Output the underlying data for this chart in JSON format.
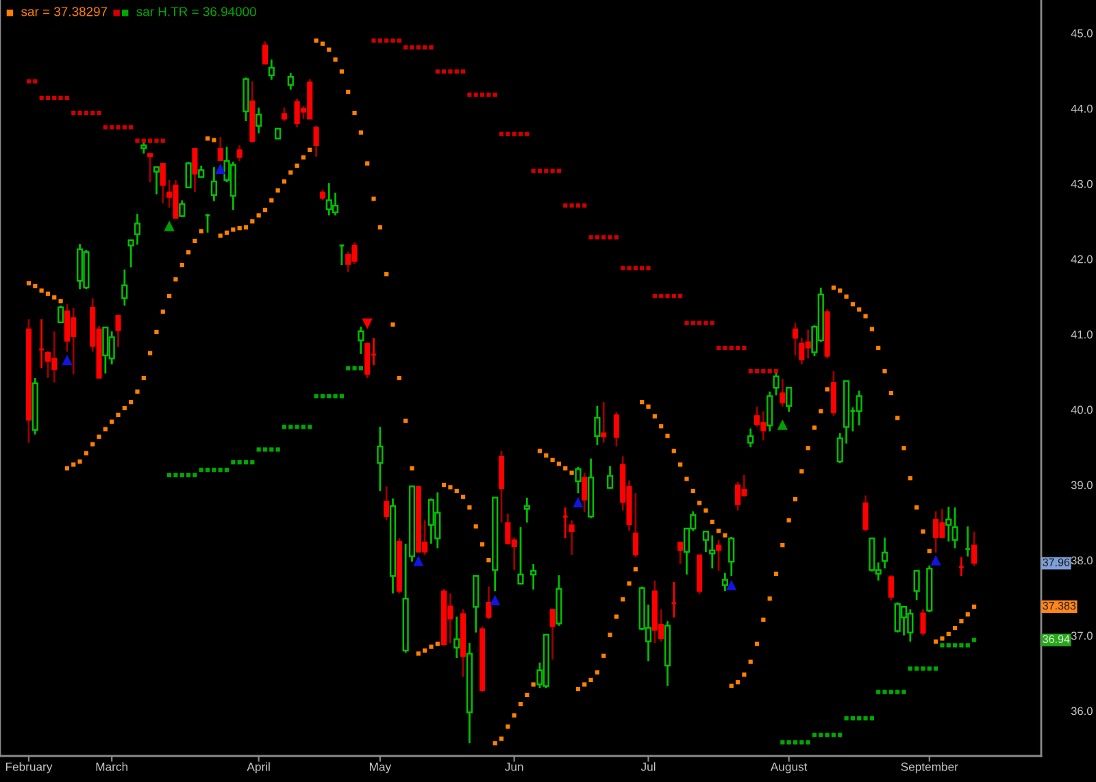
{
  "chart_data": {
    "type": "candlestick",
    "categories": [
      null,
      null,
      null,
      null,
      "February",
      null,
      null,
      null,
      null,
      null,
      null,
      null,
      null,
      null,
      null,
      null,
      null,
      "March",
      null,
      null,
      null,
      null,
      null,
      null,
      null,
      null,
      null,
      null,
      null,
      null,
      null,
      null,
      null,
      null,
      null,
      null,
      null,
      null,
      null,
      null,
      "April",
      null,
      null,
      null,
      null,
      null,
      null,
      null,
      null,
      null,
      null,
      null,
      null,
      null,
      null,
      null,
      null,
      null,
      null,
      "May",
      null,
      null,
      null,
      null,
      null,
      null,
      null,
      null,
      null,
      null,
      null,
      null,
      null,
      null,
      null,
      null,
      null,
      null,
      null,
      null,
      "Jun",
      null,
      null,
      null,
      null,
      null,
      null,
      null,
      null,
      null,
      null,
      null,
      null,
      null,
      null,
      null,
      null,
      null,
      null,
      null,
      null,
      "Jul",
      null,
      null,
      null,
      null,
      null,
      null,
      null,
      null,
      null,
      null,
      null,
      null,
      null,
      null,
      null,
      null,
      null,
      null,
      null,
      null,
      null,
      "August",
      null,
      null,
      null,
      null,
      null,
      null,
      null,
      null,
      null,
      null,
      null,
      null,
      null,
      null,
      null,
      null,
      null,
      null,
      null,
      null,
      null,
      "September",
      null,
      null,
      null,
      null,
      null,
      null,
      null,
      null,
      null,
      null,
      null,
      null,
      null,
      null,
      null,
      null,
      null
    ],
    "ohlc": [
      null,
      null,
      null,
      null,
      [
        41.07,
        41.2,
        39.56,
        39.86
      ],
      [
        39.73,
        40.42,
        39.67,
        40.35
      ],
      [
        40.8,
        41.2,
        40.55,
        40.8
      ],
      [
        40.76,
        40.78,
        40.42,
        40.64
      ],
      [
        40.68,
        41.04,
        40.36,
        40.53
      ],
      [
        41.16,
        41.38,
        41.15,
        41.36
      ],
      [
        41.31,
        41.4,
        40.77,
        40.91
      ],
      [
        41.22,
        41.35,
        40.47,
        40.97
      ],
      [
        41.71,
        42.2,
        41.6,
        42.13
      ],
      [
        41.62,
        42.12,
        41.6,
        42.09
      ],
      [
        41.36,
        41.48,
        40.77,
        40.84
      ],
      [
        41.07,
        41.11,
        40.41,
        40.42
      ],
      [
        40.72,
        41.1,
        40.48,
        41.09
      ],
      [
        40.68,
        41.04,
        40.6,
        40.96
      ],
      [
        41.25,
        41.25,
        40.83,
        41.05
      ],
      [
        41.48,
        41.86,
        41.38,
        41.65
      ],
      [
        42.18,
        42.25,
        41.89,
        42.25
      ],
      [
        42.33,
        42.6,
        42.19,
        42.47
      ],
      [
        43.47,
        43.58,
        43.4,
        43.51
      ],
      [
        43.4,
        43.4,
        43.02,
        43.36
      ],
      [
        43.16,
        43.22,
        42.86,
        43.22
      ],
      [
        43.27,
        43.27,
        42.74,
        42.98
      ],
      [
        42.89,
        43.05,
        42.68,
        42.82
      ],
      [
        42.98,
        43.05,
        42.54,
        42.54
      ],
      [
        42.57,
        42.78,
        42.56,
        42.73
      ],
      [
        42.95,
        43.29,
        42.94,
        43.27
      ],
      [
        43.47,
        43.47,
        42.89,
        43.13
      ],
      [
        43.09,
        43.24,
        43.09,
        43.18
      ],
      [
        42.58,
        42.6,
        42.35,
        42.58
      ],
      [
        42.85,
        43.22,
        42.77,
        43.03
      ],
      [
        43.47,
        43.62,
        43.3,
        43.31
      ],
      [
        43.05,
        43.49,
        43.02,
        43.3
      ],
      [
        42.84,
        43.29,
        42.65,
        43.25
      ],
      [
        43.45,
        43.51,
        43.3,
        43.35
      ],
      [
        43.96,
        44.41,
        43.83,
        44.39
      ],
      [
        44.1,
        44.36,
        43.56,
        43.56
      ],
      [
        43.77,
        44.01,
        43.67,
        43.92
      ],
      [
        44.84,
        44.89,
        44.59,
        44.59
      ],
      [
        44.44,
        44.65,
        44.38,
        44.54
      ],
      [
        43.6,
        43.73,
        43.59,
        43.73
      ],
      [
        43.93,
        44.01,
        43.83,
        43.86
      ],
      [
        44.31,
        44.47,
        44.25,
        44.42
      ],
      [
        44.09,
        44.13,
        43.75,
        43.8
      ],
      [
        44.0,
        44.03,
        43.86,
        43.95
      ],
      [
        44.35,
        44.39,
        43.86,
        43.86
      ],
      [
        43.75,
        43.77,
        43.36,
        43.51
      ],
      [
        42.89,
        42.92,
        42.78,
        42.81
      ],
      [
        42.66,
        43.01,
        42.58,
        42.78
      ],
      [
        42.62,
        42.88,
        42.58,
        42.71
      ],
      [
        42.18,
        42.18,
        41.92,
        42.18
      ],
      [
        42.06,
        42.1,
        41.83,
        41.93
      ],
      [
        42.18,
        42.22,
        41.93,
        41.97
      ],
      [
        40.92,
        41.1,
        40.74,
        41.04
      ],
      [
        40.88,
        40.89,
        40.42,
        40.47
      ],
      [
        40.73,
        40.95,
        40.59,
        40.73
      ],
      [
        39.29,
        39.77,
        38.92,
        39.51
      ],
      [
        38.78,
        38.98,
        38.53,
        38.58
      ],
      [
        37.79,
        38.82,
        37.56,
        38.72
      ],
      [
        38.25,
        38.29,
        37.56,
        37.59
      ],
      [
        36.8,
        38.22,
        36.77,
        37.49
      ],
      [
        38.05,
        38.99,
        37.98,
        38.98
      ],
      [
        38.98,
        38.99,
        38.1,
        38.11
      ],
      [
        38.24,
        38.53,
        38.07,
        38.11
      ],
      [
        38.47,
        38.82,
        38.22,
        38.8
      ],
      [
        38.29,
        38.9,
        38.16,
        38.63
      ],
      [
        37.59,
        37.62,
        36.86,
        36.88
      ],
      [
        37.39,
        37.56,
        36.9,
        37.22
      ],
      [
        36.84,
        37.25,
        36.7,
        36.95
      ],
      [
        37.29,
        37.35,
        36.45,
        36.72
      ],
      [
        35.98,
        36.9,
        35.57,
        36.76
      ],
      [
        37.38,
        37.8,
        37.04,
        37.79
      ],
      [
        37.09,
        37.12,
        36.25,
        36.27
      ],
      [
        37.44,
        37.65,
        37.22,
        37.24
      ],
      [
        37.87,
        38.83,
        37.59,
        38.83
      ],
      [
        39.38,
        39.45,
        38.5,
        38.95
      ],
      [
        38.5,
        38.62,
        38.21,
        38.22
      ],
      [
        38.27,
        38.3,
        37.87,
        38.18
      ],
      [
        37.69,
        38.44,
        37.68,
        37.81
      ],
      [
        38.68,
        38.83,
        38.5,
        38.72
      ],
      [
        37.81,
        37.95,
        37.61,
        37.86
      ],
      [
        36.35,
        36.64,
        36.3,
        36.54
      ],
      [
        36.33,
        37.02,
        36.3,
        37.01
      ],
      [
        37.35,
        37.35,
        36.68,
        37.12
      ],
      [
        37.16,
        37.8,
        37.13,
        37.62
      ],
      [
        38.58,
        38.7,
        38.29,
        38.58
      ],
      [
        38.47,
        38.53,
        38.07,
        38.38
      ],
      [
        39.05,
        39.24,
        38.89,
        39.21
      ],
      [
        39.1,
        39.16,
        38.64,
        38.8
      ],
      [
        38.58,
        39.35,
        38.56,
        39.1
      ],
      [
        39.65,
        40.05,
        39.53,
        39.89
      ],
      [
        39.69,
        40.1,
        39.56,
        39.64
      ],
      [
        38.96,
        39.25,
        38.95,
        39.12
      ],
      [
        39.93,
        39.97,
        39.51,
        39.63
      ],
      [
        39.27,
        39.38,
        38.66,
        38.77
      ],
      [
        38.98,
        39.06,
        38.39,
        38.47
      ],
      [
        38.36,
        38.89,
        38.04,
        38.07
      ],
      [
        37.09,
        37.65,
        37.07,
        37.63
      ],
      [
        36.92,
        37.41,
        36.66,
        37.1
      ],
      [
        37.59,
        37.73,
        36.9,
        37.07
      ],
      [
        37.15,
        37.35,
        36.92,
        36.96
      ],
      [
        36.6,
        37.19,
        36.33,
        37.13
      ],
      [
        37.43,
        37.71,
        37.24,
        37.43
      ],
      [
        38.24,
        38.24,
        37.95,
        38.13
      ],
      [
        38.11,
        38.42,
        37.81,
        38.42
      ],
      [
        38.42,
        38.65,
        38.39,
        38.6
      ],
      [
        38.07,
        38.07,
        37.55,
        37.59
      ],
      [
        38.27,
        38.38,
        38.11,
        38.38
      ],
      [
        38.09,
        38.33,
        37.89,
        38.13
      ],
      [
        38.2,
        38.27,
        37.86,
        38.13
      ],
      [
        37.67,
        37.83,
        37.59,
        37.74
      ],
      [
        37.98,
        38.31,
        37.79,
        38.29
      ],
      [
        39.0,
        39.04,
        38.66,
        38.74
      ],
      [
        38.94,
        39.13,
        38.84,
        38.86
      ],
      [
        39.56,
        39.75,
        39.5,
        39.65
      ],
      [
        39.92,
        40.04,
        39.77,
        39.8
      ],
      [
        39.83,
        39.98,
        39.59,
        39.72
      ],
      [
        39.79,
        40.24,
        39.71,
        40.18
      ],
      [
        40.29,
        40.5,
        40.19,
        40.44
      ],
      [
        40.22,
        40.41,
        40.04,
        40.09
      ],
      [
        40.05,
        40.3,
        39.97,
        40.29
      ],
      [
        41.07,
        41.15,
        40.72,
        40.95
      ],
      [
        40.88,
        40.95,
        40.6,
        40.66
      ],
      [
        40.9,
        41.06,
        40.68,
        40.82
      ],
      [
        40.76,
        41.12,
        40.71,
        41.1
      ],
      [
        40.92,
        41.62,
        40.9,
        41.53
      ],
      [
        41.3,
        41.33,
        40.68,
        40.71
      ],
      [
        40.36,
        40.51,
        39.92,
        39.96
      ],
      [
        39.31,
        39.69,
        39.29,
        39.62
      ],
      [
        39.77,
        40.38,
        39.55,
        40.38
      ],
      [
        39.98,
        40.03,
        39.71,
        39.98
      ],
      [
        39.98,
        40.25,
        39.79,
        40.18
      ],
      [
        38.76,
        38.86,
        38.38,
        38.41
      ],
      [
        37.87,
        38.3,
        37.85,
        38.29
      ],
      [
        37.82,
        37.97,
        37.73,
        37.87
      ],
      [
        37.99,
        38.3,
        37.89,
        38.1
      ],
      [
        37.78,
        37.8,
        37.47,
        37.51
      ],
      [
        37.06,
        37.44,
        37.04,
        37.42
      ],
      [
        37.24,
        37.39,
        37.0,
        37.38
      ],
      [
        37.04,
        37.35,
        36.92,
        37.29
      ],
      [
        37.59,
        37.87,
        37.47,
        37.86
      ],
      [
        37.3,
        37.35,
        37.0,
        37.03
      ],
      [
        37.33,
        37.93,
        37.31,
        37.89
      ],
      [
        38.54,
        38.65,
        38.1,
        38.3
      ],
      [
        38.5,
        38.68,
        38.29,
        38.3
      ],
      [
        38.47,
        38.71,
        38.25,
        38.54
      ],
      [
        38.27,
        38.7,
        38.16,
        38.44
      ],
      [
        37.91,
        38.04,
        37.79,
        37.91
      ],
      [
        38.15,
        38.45,
        38.05,
        38.15
      ],
      [
        38.2,
        38.38,
        37.92,
        37.96
      ],
      null,
      null,
      null,
      null,
      null,
      null,
      null,
      null,
      null,
      null
    ],
    "colors": [
      null,
      null,
      null,
      null,
      "#ff0000",
      "#00c000",
      "#ff0000",
      "#ff0000",
      "#ff0000",
      "#00c000",
      "#ff0000",
      "#ff0000",
      "#00c000",
      "#00c000",
      "#ff0000",
      "#ff0000",
      "#00c000",
      "#00c000",
      "#ff0000",
      "#00c000",
      "#00c000",
      "#00c000",
      "#00c000",
      "#ff0000",
      "#00c000",
      "#ff0000",
      "#ff0000",
      "#ff0000",
      "#00c000",
      "#00c000",
      "#ff0000",
      "#00c000",
      "#00c000",
      "#00c000",
      "#ff0000",
      "#00c000",
      "#00c000",
      "#ff0000",
      "#00c000",
      "#ff0000",
      "#00c000",
      "#ff0000",
      "#00c000",
      "#00c000",
      "#ff0000",
      "#00c000",
      "#ff0000",
      "#ff0000",
      "#ff0000",
      "#ff0000",
      "#ff0000",
      "#00c000",
      "#00c000",
      "#00c000",
      "#ff0000",
      "#ff0000",
      "#00c000",
      "#ff0000",
      "#ff0000",
      "#00c000",
      "#ff0000",
      "#00c000",
      "#ff0000",
      "#00c000",
      "#00c000",
      "#ff0000",
      "#ff0000",
      "#00c000",
      "#00c000",
      "#ff0000",
      "#ff0000",
      "#00c000",
      "#ff0000",
      "#00c000",
      "#00c000",
      "#ff0000",
      "#ff0000",
      "#00c000",
      "#ff0000",
      "#ff0000",
      "#ff0000",
      "#00c000",
      "#00c000",
      "#00c000",
      "#00c000",
      "#00c000",
      "#ff0000",
      "#00c000",
      "#ff0000",
      "#ff0000",
      "#00c000",
      "#ff0000",
      "#00c000",
      "#00c000",
      "#ff0000",
      "#00c000",
      "#ff0000",
      "#ff0000",
      "#ff0000",
      "#ff0000",
      "#00c000",
      "#00c000",
      "#ff0000",
      "#ff0000",
      "#00c000",
      "#ff0000",
      "#ff0000",
      "#00c000",
      "#00c000",
      "#ff0000",
      "#00c000",
      "#00c000",
      "#ff0000",
      "#00c000",
      "#00c000",
      "#ff0000",
      "#ff0000",
      "#00c000",
      "#ff0000",
      "#ff0000",
      "#00c000",
      "#00c000",
      "#ff0000",
      "#00c000",
      "#ff0000",
      "#ff0000",
      "#ff0000",
      "#00c000",
      "#00c000",
      "#ff0000",
      "#ff0000",
      "#00c000",
      "#00c000",
      "#00c000",
      "#00c000",
      "#ff0000",
      "#00c000",
      "#00c000",
      "#00c000",
      "#ff0000",
      "#00c000",
      "#00c000",
      "#00c000",
      "#00c000",
      "#ff0000",
      "#00c000",
      "#ff0000",
      "#ff0000",
      "#00c000",
      "#00c000",
      "#ff0000",
      "#00c000",
      "#ff0000",
      null,
      null,
      null,
      null,
      null,
      null,
      null,
      null,
      null,
      null
    ],
    "series": [
      {
        "type": "scatter",
        "name": "sar = 37.38297",
        "color": "#ff8000",
        "marker": "square",
        "values": [
          null,
          null,
          null,
          null,
          41.68,
          41.64,
          41.58,
          41.54,
          41.49,
          41.44,
          39.22,
          39.27,
          39.31,
          39.42,
          39.54,
          39.64,
          39.74,
          39.84,
          39.93,
          40.02,
          40.1,
          40.24,
          40.42,
          40.75,
          41.03,
          41.3,
          41.51,
          41.73,
          41.92,
          42.09,
          42.24,
          42.37,
          43.6,
          43.58,
          42.31,
          42.35,
          42.39,
          42.41,
          42.42,
          42.5,
          42.58,
          42.65,
          42.78,
          42.91,
          43.03,
          43.15,
          43.24,
          43.35,
          43.45,
          44.9,
          44.86,
          44.78,
          44.65,
          44.49,
          44.22,
          43.94,
          43.68,
          43.27,
          42.8,
          42.42,
          41.8,
          41.13,
          40.42,
          39.85,
          39.22,
          36.76,
          36.8,
          36.85,
          36.89,
          39.0,
          38.97,
          38.92,
          38.84,
          38.7,
          38.45,
          38.21,
          38.0,
          35.57,
          35.63,
          35.79,
          35.94,
          36.09,
          36.21,
          36.35,
          39.45,
          39.39,
          39.33,
          39.28,
          39.22,
          39.16,
          36.29,
          36.35,
          36.41,
          36.51,
          36.73,
          37.01,
          37.25,
          37.48,
          37.69,
          37.88,
          40.1,
          40.04,
          39.91,
          39.78,
          39.65,
          39.45,
          39.27,
          39.08,
          38.92,
          38.76,
          38.66,
          38.51,
          38.39,
          38.33,
          36.33,
          36.38,
          36.48,
          36.65,
          36.89,
          37.21,
          37.49,
          37.82,
          38.2,
          38.53,
          38.81,
          39.18,
          39.49,
          39.76,
          39.98,
          40.27,
          41.62,
          41.58,
          41.5,
          41.4,
          41.33,
          41.24,
          41.07,
          40.82,
          40.51,
          40.22,
          39.89,
          39.49,
          39.09,
          38.7,
          38.38,
          38.12,
          36.92,
          36.96,
          37.02,
          37.1,
          37.19,
          37.28,
          37.383,
          null,
          null,
          null,
          null,
          null,
          null,
          null,
          null,
          null,
          null
        ]
      },
      {
        "type": "scatter",
        "name": "sar H.TR = 36.94000",
        "marker": "square",
        "values": [
          null,
          null,
          null,
          null,
          44.36,
          44.36,
          44.14,
          44.14,
          44.14,
          44.14,
          44.14,
          43.94,
          43.94,
          43.94,
          43.94,
          43.94,
          43.75,
          43.75,
          43.75,
          43.75,
          43.75,
          43.57,
          43.57,
          43.57,
          43.57,
          43.57,
          39.13,
          39.13,
          39.13,
          39.13,
          39.13,
          39.2,
          39.2,
          39.2,
          39.2,
          39.2,
          39.3,
          39.3,
          39.3,
          39.3,
          39.47,
          39.47,
          39.47,
          39.47,
          39.77,
          39.77,
          39.77,
          39.77,
          39.77,
          40.18,
          40.18,
          40.18,
          40.18,
          40.18,
          40.55,
          40.55,
          40.55,
          null,
          44.9,
          44.9,
          44.9,
          44.9,
          44.9,
          44.81,
          44.81,
          44.81,
          44.81,
          44.81,
          44.49,
          44.49,
          44.49,
          44.49,
          44.49,
          44.18,
          44.18,
          44.18,
          44.18,
          44.18,
          43.66,
          43.66,
          43.66,
          43.66,
          43.66,
          43.17,
          43.17,
          43.17,
          43.17,
          43.17,
          42.71,
          42.71,
          42.71,
          42.71,
          42.29,
          42.29,
          42.29,
          42.29,
          42.29,
          41.88,
          41.88,
          41.88,
          41.88,
          41.88,
          41.51,
          41.51,
          41.51,
          41.51,
          41.51,
          41.15,
          41.15,
          41.15,
          41.15,
          41.15,
          40.82,
          40.82,
          40.82,
          40.82,
          40.82,
          40.51,
          40.51,
          40.51,
          40.51,
          40.51,
          35.58,
          35.58,
          35.58,
          35.58,
          35.58,
          35.68,
          35.68,
          35.68,
          35.68,
          35.68,
          35.9,
          35.9,
          35.9,
          35.9,
          35.9,
          36.25,
          36.25,
          36.25,
          36.25,
          36.25,
          36.56,
          36.56,
          36.56,
          36.56,
          36.56,
          36.87,
          36.87,
          36.87,
          36.87,
          36.87,
          36.94,
          null,
          null,
          null,
          null,
          null,
          null,
          null,
          null,
          null,
          null
        ],
        "colors": [
          null,
          null,
          null,
          null,
          "#d00000",
          "#d00000",
          "#d00000",
          "#d00000",
          "#d00000",
          "#d00000",
          "#d00000",
          "#d00000",
          "#d00000",
          "#d00000",
          "#d00000",
          "#d00000",
          "#d00000",
          "#d00000",
          "#d00000",
          "#d00000",
          "#d00000",
          "#d00000",
          "#d00000",
          "#d00000",
          "#d00000",
          "#d00000",
          "#00a800",
          "#00a800",
          "#00a800",
          "#00a800",
          "#00a800",
          "#00a800",
          "#00a800",
          "#00a800",
          "#00a800",
          "#00a800",
          "#00a800",
          "#00a800",
          "#00a800",
          "#00a800",
          "#00a800",
          "#00a800",
          "#00a800",
          "#00a800",
          "#00a800",
          "#00a800",
          "#00a800",
          "#00a800",
          "#00a800",
          "#00a800",
          "#00a800",
          "#00a800",
          "#00a800",
          "#00a800",
          "#00a800",
          "#00a800",
          "#00a800",
          null,
          "#d00000",
          "#d00000",
          "#d00000",
          "#d00000",
          "#d00000",
          "#d00000",
          "#d00000",
          "#d00000",
          "#d00000",
          "#d00000",
          "#d00000",
          "#d00000",
          "#d00000",
          "#d00000",
          "#d00000",
          "#d00000",
          "#d00000",
          "#d00000",
          "#d00000",
          "#d00000",
          "#d00000",
          "#d00000",
          "#d00000",
          "#d00000",
          "#d00000",
          "#d00000",
          "#d00000",
          "#d00000",
          "#d00000",
          "#d00000",
          "#d00000",
          "#d00000",
          "#d00000",
          "#d00000",
          "#d00000",
          "#d00000",
          "#d00000",
          "#d00000",
          "#d00000",
          "#d00000",
          "#d00000",
          "#d00000",
          "#d00000",
          "#d00000",
          "#d00000",
          "#d00000",
          "#d00000",
          "#d00000",
          "#d00000",
          "#d00000",
          "#d00000",
          "#d00000",
          "#d00000",
          "#d00000",
          "#d00000",
          "#d00000",
          "#d00000",
          "#d00000",
          "#d00000",
          "#d00000",
          "#d00000",
          "#d00000",
          "#d00000",
          "#d00000",
          "#00a800",
          "#00a800",
          "#00a800",
          "#00a800",
          "#00a800",
          "#00a800",
          "#00a800",
          "#00a800",
          "#00a800",
          "#00a800",
          "#00a800",
          "#00a800",
          "#00a800",
          "#00a800",
          "#00a800",
          "#00a800",
          "#00a800",
          "#00a800",
          "#00a800",
          "#00a800",
          "#00a800",
          "#00a800",
          "#00a800",
          "#00a800",
          "#00a800",
          "#00a800",
          "#00a800",
          "#00a800",
          "#00a800",
          "#00a800",
          "#00a800",
          null,
          null,
          null,
          null,
          null,
          null,
          null,
          null,
          null,
          null
        ]
      },
      {
        "type": "scatter",
        "color": "#1414e0",
        "marker": "triangle",
        "values": [
          null,
          null,
          null,
          null,
          null,
          null,
          null,
          null,
          null,
          null,
          40.66,
          null,
          null,
          null,
          null,
          null,
          null,
          null,
          null,
          null,
          null,
          null,
          null,
          null,
          null,
          null,
          null,
          null,
          null,
          null,
          null,
          null,
          null,
          null,
          43.2,
          null,
          null,
          null,
          null,
          null,
          null,
          null,
          null,
          null,
          null,
          null,
          null,
          null,
          null,
          null,
          null,
          null,
          null,
          null,
          null,
          null,
          null,
          null,
          null,
          null,
          null,
          null,
          null,
          null,
          null,
          37.99,
          null,
          null,
          null,
          null,
          null,
          null,
          null,
          null,
          null,
          null,
          null,
          37.47,
          null,
          null,
          null,
          null,
          null,
          null,
          null,
          null,
          null,
          null,
          null,
          null,
          38.77,
          null,
          null,
          null,
          null,
          null,
          null,
          null,
          null,
          null,
          null,
          null,
          null,
          null,
          null,
          null,
          null,
          null,
          null,
          null,
          null,
          null,
          null,
          null,
          37.67,
          null,
          null,
          null,
          null,
          null,
          null,
          null,
          null,
          null,
          null,
          null,
          null,
          null,
          null,
          null,
          null,
          null,
          null,
          null,
          null,
          null,
          null,
          null,
          null,
          null,
          null,
          null,
          null,
          null,
          null,
          null,
          38.0,
          null,
          null,
          null,
          null,
          null,
          null,
          null,
          null,
          null,
          null,
          null,
          null,
          null,
          null,
          null,
          null
        ]
      },
      {
        "type": "scatter",
        "color": "#00a000",
        "marker": "triangle",
        "values": [
          null,
          null,
          null,
          null,
          null,
          null,
          null,
          null,
          null,
          null,
          null,
          null,
          null,
          null,
          null,
          null,
          null,
          null,
          null,
          null,
          null,
          null,
          null,
          null,
          null,
          null,
          42.44,
          null,
          null,
          null,
          null,
          null,
          null,
          null,
          null,
          null,
          null,
          null,
          null,
          null,
          null,
          null,
          null,
          null,
          null,
          null,
          null,
          null,
          null,
          null,
          null,
          null,
          null,
          null,
          null,
          null,
          null,
          null,
          null,
          null,
          null,
          null,
          null,
          null,
          null,
          null,
          null,
          null,
          null,
          null,
          null,
          null,
          null,
          null,
          null,
          null,
          null,
          null,
          null,
          null,
          null,
          null,
          null,
          null,
          null,
          null,
          null,
          null,
          null,
          null,
          null,
          null,
          null,
          null,
          null,
          null,
          null,
          null,
          null,
          null,
          null,
          null,
          null,
          null,
          null,
          null,
          null,
          null,
          null,
          null,
          null,
          null,
          null,
          null,
          null,
          null,
          null,
          null,
          null,
          null,
          null,
          null,
          39.8,
          null,
          null,
          null,
          null,
          null,
          null,
          null,
          null,
          null,
          null,
          null,
          null,
          null,
          null,
          null,
          null,
          null,
          null,
          null,
          null,
          null,
          null,
          null,
          null,
          null,
          null,
          null,
          null,
          null,
          null,
          null,
          null,
          null,
          null,
          null,
          null,
          null,
          null,
          null,
          null
        ]
      },
      {
        "type": "scatter",
        "color": "#ff0000",
        "marker": "triangle",
        "values": [
          null,
          null,
          null,
          null,
          null,
          null,
          null,
          null,
          null,
          null,
          null,
          null,
          null,
          null,
          null,
          null,
          null,
          null,
          null,
          null,
          null,
          null,
          null,
          null,
          null,
          null,
          null,
          null,
          null,
          null,
          null,
          null,
          null,
          null,
          null,
          null,
          null,
          null,
          null,
          null,
          null,
          null,
          null,
          null,
          null,
          null,
          null,
          null,
          null,
          null,
          null,
          null,
          null,
          null,
          null,
          null,
          null,
          41.14,
          null,
          null,
          null,
          null,
          null,
          null,
          null,
          null,
          null,
          null,
          null,
          null,
          null,
          null,
          null,
          null,
          null,
          null,
          null,
          null,
          null,
          null,
          null,
          null,
          null,
          null,
          null,
          null,
          null,
          null,
          null,
          null,
          null,
          null,
          null,
          null,
          null,
          null,
          null,
          null,
          null,
          null,
          null,
          null,
          null,
          null,
          null,
          null,
          null,
          null,
          null,
          null,
          null,
          null,
          null,
          null,
          null,
          null,
          null,
          null,
          null,
          null,
          null,
          null,
          null,
          null,
          null,
          null,
          null,
          null,
          null,
          null,
          null,
          null,
          null,
          null,
          null,
          null,
          null,
          null,
          null,
          null,
          null,
          null,
          null,
          null,
          null,
          null,
          null,
          null,
          null,
          null,
          null,
          null,
          null,
          null,
          null,
          null,
          null,
          null,
          null,
          null,
          null,
          null,
          null
        ]
      }
    ],
    "legend": "top left",
    "ylim": [
      35.4,
      45.44
    ],
    "yticks": [
      {
        "value": 36,
        "label": "36.0"
      },
      {
        "value": 37,
        "label": "37.0"
      },
      {
        "value": 38,
        "label": "38.0"
      },
      {
        "value": 39,
        "label": "39.0"
      },
      {
        "value": 40,
        "label": "40.0"
      },
      {
        "value": 41,
        "label": "41.0"
      },
      {
        "value": 42,
        "label": "42.0"
      },
      {
        "value": 43,
        "label": "43.0"
      },
      {
        "value": 44,
        "label": "44.0"
      },
      {
        "value": 45,
        "label": "45.0"
      }
    ],
    "annotations": [
      {
        "text": "37.96",
        "y": 37.96
      },
      {
        "text": "37.383",
        "y": 37.383
      },
      {
        "text": "36.94",
        "y": 36.94
      }
    ]
  }
}
